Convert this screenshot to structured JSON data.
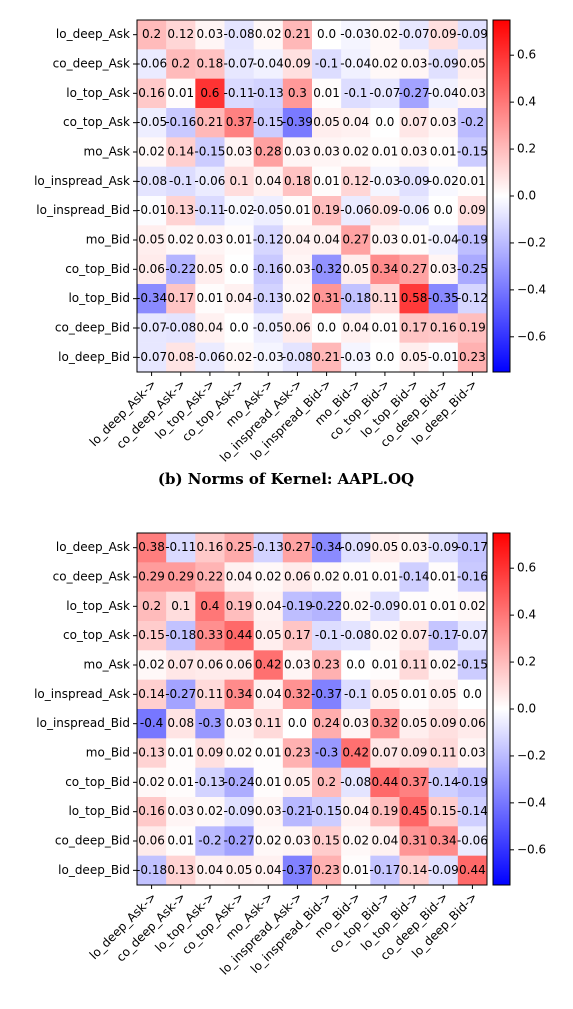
{
  "chart_data": [
    {
      "type": "heatmap",
      "rows": [
        "lo_deep_Ask",
        "co_deep_Ask",
        "lo_top_Ask",
        "co_top_Ask",
        "mo_Ask",
        "lo_inspread_Ask",
        "lo_inspread_Bid",
        "mo_Bid",
        "co_top_Bid",
        "lo_top_Bid",
        "co_deep_Bid",
        "lo_deep_Bid"
      ],
      "columns": [
        "lo_deep_Ask->",
        "co_deep_Ask->",
        "lo_top_Ask->",
        "co_top_Ask->",
        "mo_Ask->",
        "lo_inspread_Ask->",
        "lo_inspread_Bid->",
        "mo_Bid->",
        "co_top_Bid->",
        "lo_top_Bid->",
        "co_deep_Bid->",
        "lo_deep_Bid->"
      ],
      "values": [
        [
          0.2,
          0.12,
          0.03,
          -0.08,
          0.02,
          0.21,
          0.0,
          -0.03,
          0.02,
          -0.07,
          0.09,
          -0.09
        ],
        [
          -0.06,
          0.2,
          0.18,
          -0.07,
          -0.04,
          0.09,
          -0.1,
          -0.04,
          0.02,
          0.03,
          -0.09,
          0.05
        ],
        [
          0.16,
          0.01,
          0.6,
          -0.11,
          -0.13,
          0.3,
          0.01,
          -0.1,
          -0.07,
          -0.27,
          -0.04,
          0.03
        ],
        [
          -0.05,
          -0.16,
          0.21,
          0.37,
          -0.15,
          -0.39,
          0.05,
          0.04,
          0.0,
          0.07,
          0.03,
          -0.2
        ],
        [
          0.02,
          0.14,
          -0.15,
          0.03,
          0.28,
          0.03,
          0.03,
          0.02,
          0.01,
          0.03,
          0.01,
          -0.15
        ],
        [
          -0.08,
          -0.1,
          -0.06,
          0.1,
          0.04,
          0.18,
          0.01,
          0.12,
          -0.03,
          -0.09,
          -0.02,
          0.01
        ],
        [
          -0.01,
          0.13,
          -0.11,
          -0.02,
          -0.05,
          0.01,
          0.19,
          -0.06,
          0.09,
          -0.06,
          0.0,
          0.09
        ],
        [
          0.05,
          0.02,
          0.03,
          0.01,
          -0.12,
          0.04,
          0.04,
          0.27,
          0.03,
          0.01,
          -0.04,
          -0.19
        ],
        [
          0.06,
          -0.22,
          0.05,
          0.0,
          -0.16,
          0.03,
          -0.32,
          0.05,
          0.34,
          0.27,
          0.03,
          -0.25
        ],
        [
          -0.34,
          0.17,
          0.01,
          0.04,
          -0.13,
          0.02,
          0.31,
          -0.18,
          0.11,
          0.58,
          -0.35,
          -0.12
        ],
        [
          -0.07,
          -0.08,
          0.04,
          0.0,
          -0.05,
          0.06,
          0.0,
          0.04,
          0.01,
          0.17,
          0.16,
          0.19
        ],
        [
          -0.07,
          0.08,
          -0.06,
          0.02,
          -0.03,
          -0.08,
          0.21,
          -0.03,
          0.0,
          0.05,
          -0.01,
          0.23
        ]
      ],
      "value_labels": [
        [
          "0.2",
          "0.12",
          "0.03",
          "-0.08",
          "0.02",
          "0.21",
          "0.0",
          "-0.03",
          "0.02",
          "-0.07",
          "0.09",
          "-0.09"
        ],
        [
          "-0.06",
          "0.2",
          "0.18",
          "-0.07",
          "-0.04",
          "0.09",
          "-0.1",
          "-0.04",
          "0.02",
          "0.03",
          "-0.09",
          "0.05"
        ],
        [
          "0.16",
          "0.01",
          "0.6",
          "-0.11",
          "-0.13",
          "0.3",
          "0.01",
          "-0.1",
          "-0.07",
          "-0.27",
          "-0.04",
          "0.03"
        ],
        [
          "-0.05",
          "-0.16",
          "0.21",
          "0.37",
          "-0.15",
          "-0.39",
          "0.05",
          "0.04",
          "0.0",
          "0.07",
          "0.03",
          "-0.2"
        ],
        [
          "0.02",
          "0.14",
          "-0.15",
          "0.03",
          "0.28",
          "0.03",
          "0.03",
          "0.02",
          "0.01",
          "0.03",
          "0.01",
          "-0.15"
        ],
        [
          "-0.08",
          "-0.1",
          "-0.06",
          "0.1",
          "0.04",
          "0.18",
          "0.01",
          "0.12",
          "-0.03",
          "-0.09",
          "-0.02",
          "0.01"
        ],
        [
          "-0.01",
          "0.13",
          "-0.11",
          "-0.02",
          "-0.05",
          "0.01",
          "0.19",
          "-0.06",
          "0.09",
          "-0.06",
          "0.0",
          "0.09"
        ],
        [
          "0.05",
          "0.02",
          "0.03",
          "0.01",
          "-0.12",
          "0.04",
          "0.04",
          "0.27",
          "0.03",
          "0.01",
          "-0.04",
          "-0.19"
        ],
        [
          "0.06",
          "-0.22",
          "0.05",
          "0.0",
          "-0.16",
          "0.03",
          "-0.32",
          "0.05",
          "0.34",
          "0.27",
          "0.03",
          "-0.25"
        ],
        [
          "-0.34",
          "0.17",
          "0.01",
          "0.04",
          "-0.13",
          "0.02",
          "0.31",
          "-0.18",
          "0.11",
          "0.58",
          "-0.35",
          "-0.12"
        ],
        [
          "-0.07",
          "-0.08",
          "0.04",
          "0.0",
          "-0.05",
          "0.06",
          "0.0",
          "0.04",
          "0.01",
          "0.17",
          "0.16",
          "0.19"
        ],
        [
          "-0.07",
          "0.08",
          "-0.06",
          "0.02",
          "-0.03",
          "-0.08",
          "0.21",
          "-0.03",
          "0.0",
          "0.05",
          "-0.01",
          "0.23"
        ]
      ],
      "colormap": "bwr",
      "vlim": [
        -0.75,
        0.75
      ],
      "cbar_ticks": [
        {
          "value": -0.6,
          "label": "−0.6"
        },
        {
          "value": -0.4,
          "label": "−0.4"
        },
        {
          "value": -0.2,
          "label": "−0.2"
        },
        {
          "value": 0,
          "label": "0.0"
        },
        0.2,
        0.4,
        0.6
      ],
      "caption": "(b) Norms of Kernel: AAPL.OQ"
    },
    {
      "type": "heatmap",
      "rows": [
        "lo_deep_Ask",
        "co_deep_Ask",
        "lo_top_Ask",
        "co_top_Ask",
        "mo_Ask",
        "lo_inspread_Ask",
        "lo_inspread_Bid",
        "mo_Bid",
        "co_top_Bid",
        "lo_top_Bid",
        "co_deep_Bid",
        "lo_deep_Bid"
      ],
      "columns": [
        "lo_deep_Ask->",
        "co_deep_Ask->",
        "lo_top_Ask->",
        "co_top_Ask->",
        "mo_Ask->",
        "lo_inspread_Ask->",
        "lo_inspread_Bid->",
        "mo_Bid->",
        "co_top_Bid->",
        "lo_top_Bid->",
        "co_deep_Bid->",
        "lo_deep_Bid->"
      ],
      "values": [
        [
          0.38,
          -0.11,
          0.16,
          0.25,
          -0.13,
          0.27,
          -0.34,
          -0.09,
          0.05,
          0.03,
          -0.09,
          -0.17
        ],
        [
          0.29,
          0.29,
          0.22,
          0.04,
          0.02,
          0.06,
          0.02,
          0.01,
          0.01,
          -0.14,
          0.01,
          -0.16
        ],
        [
          0.2,
          0.1,
          0.4,
          0.19,
          0.04,
          -0.19,
          -0.22,
          0.02,
          -0.09,
          0.01,
          0.01,
          0.02
        ],
        [
          0.15,
          -0.18,
          0.33,
          0.44,
          0.05,
          0.17,
          -0.1,
          -0.08,
          0.02,
          0.07,
          -0.17,
          -0.07
        ],
        [
          0.02,
          0.07,
          0.06,
          0.06,
          0.42,
          0.03,
          0.23,
          0.0,
          0.01,
          0.11,
          0.02,
          -0.15
        ],
        [
          0.14,
          -0.27,
          0.11,
          0.34,
          0.04,
          0.32,
          -0.37,
          -0.1,
          0.05,
          0.01,
          0.05,
          0.0
        ],
        [
          -0.4,
          0.08,
          -0.3,
          0.03,
          0.11,
          0.0,
          0.24,
          0.03,
          0.32,
          0.05,
          0.09,
          0.06
        ],
        [
          0.13,
          0.01,
          0.09,
          0.02,
          0.01,
          0.23,
          -0.3,
          0.42,
          0.07,
          0.09,
          0.11,
          0.03
        ],
        [
          0.02,
          0.01,
          -0.13,
          -0.24,
          0.01,
          0.05,
          0.2,
          -0.08,
          0.44,
          0.37,
          -0.14,
          -0.19
        ],
        [
          0.16,
          0.03,
          0.02,
          -0.09,
          0.03,
          -0.21,
          -0.15,
          0.04,
          0.19,
          0.45,
          0.15,
          -0.14
        ],
        [
          0.06,
          0.01,
          -0.2,
          -0.27,
          0.02,
          0.03,
          0.15,
          0.02,
          0.04,
          0.31,
          0.34,
          -0.06
        ],
        [
          -0.18,
          0.13,
          0.04,
          0.05,
          0.04,
          -0.37,
          0.23,
          0.01,
          -0.17,
          0.14,
          -0.09,
          0.44
        ]
      ],
      "value_labels": [
        [
          "0.38",
          "-0.11",
          "0.16",
          "0.25",
          "-0.13",
          "0.27",
          "-0.34",
          "-0.09",
          "0.05",
          "0.03",
          "-0.09",
          "-0.17"
        ],
        [
          "0.29",
          "0.29",
          "0.22",
          "0.04",
          "0.02",
          "0.06",
          "0.02",
          "0.01",
          "0.01",
          "-0.14",
          "0.01",
          "-0.16"
        ],
        [
          "0.2",
          "0.1",
          "0.4",
          "0.19",
          "0.04",
          "-0.19",
          "-0.22",
          "0.02",
          "-0.09",
          "0.01",
          "0.01",
          "0.02"
        ],
        [
          "0.15",
          "-0.18",
          "0.33",
          "0.44",
          "0.05",
          "0.17",
          "-0.1",
          "-0.08",
          "0.02",
          "0.07",
          "-0.17",
          "-0.07"
        ],
        [
          "0.02",
          "0.07",
          "0.06",
          "0.06",
          "0.42",
          "0.03",
          "0.23",
          "0.0",
          "0.01",
          "0.11",
          "0.02",
          "-0.15"
        ],
        [
          "0.14",
          "-0.27",
          "0.11",
          "0.34",
          "0.04",
          "0.32",
          "-0.37",
          "-0.1",
          "0.05",
          "0.01",
          "0.05",
          "0.0"
        ],
        [
          "-0.4",
          "0.08",
          "-0.3",
          "0.03",
          "0.11",
          "0.0",
          "0.24",
          "0.03",
          "0.32",
          "0.05",
          "0.09",
          "0.06"
        ],
        [
          "0.13",
          "0.01",
          "0.09",
          "0.02",
          "0.01",
          "0.23",
          "-0.3",
          "0.42",
          "0.07",
          "0.09",
          "0.11",
          "0.03"
        ],
        [
          "0.02",
          "0.01",
          "-0.13",
          "-0.24",
          "0.01",
          "0.05",
          "0.2",
          "-0.08",
          "0.44",
          "0.37",
          "-0.14",
          "-0.19"
        ],
        [
          "0.16",
          "0.03",
          "0.02",
          "-0.09",
          "0.03",
          "-0.21",
          "-0.15",
          "0.04",
          "0.19",
          "0.45",
          "0.15",
          "-0.14"
        ],
        [
          "0.06",
          "0.01",
          "-0.2",
          "-0.27",
          "0.02",
          "0.03",
          "0.15",
          "0.02",
          "0.04",
          "0.31",
          "0.34",
          "-0.06"
        ],
        [
          "-0.18",
          "0.13",
          "0.04",
          "0.05",
          "0.04",
          "-0.37",
          "0.23",
          "0.01",
          "-0.17",
          "0.14",
          "-0.09",
          "0.44"
        ]
      ],
      "colormap": "bwr",
      "vlim": [
        -0.75,
        0.75
      ],
      "cbar_ticks": [
        {
          "value": -0.6,
          "label": "−0.6"
        },
        {
          "value": -0.4,
          "label": "−0.4"
        },
        {
          "value": -0.2,
          "label": "−0.2"
        },
        {
          "value": 0,
          "label": "0.0"
        },
        0.2,
        0.4,
        0.6
      ]
    }
  ]
}
